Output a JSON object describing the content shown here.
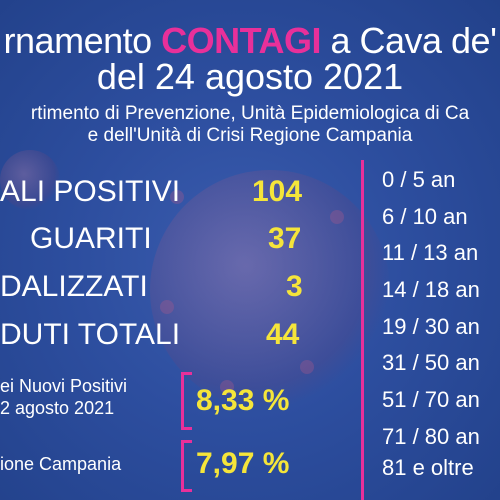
{
  "title": {
    "prefix": "rnamento ",
    "accent": "CONTAGI",
    "suffix": " a Cava de'",
    "date_line": "del 24 agosto 2021"
  },
  "subtitle": {
    "line1": "rtimento di Prevenzione, Unità Epidemiologica di Ca",
    "line2": "e dell'Unità di Crisi Regione Campania"
  },
  "stats": [
    {
      "label": "ALI POSITIVI",
      "value": "104"
    },
    {
      "label": "GUARITI",
      "value": "37"
    },
    {
      "label": "DALIZZATI",
      "value": "3"
    },
    {
      "label": "DUTI TOTALI",
      "value": "44"
    }
  ],
  "percentages": [
    {
      "label_line1": "ei Nuovi Positivi",
      "label_line2": "2 agosto 2021",
      "value": "8,33 %"
    },
    {
      "label_line1": "ione Campania",
      "value": "7,97 %"
    }
  ],
  "age_ranges": [
    "0  /   5  an",
    "6  / 10  an",
    "11  / 13  an",
    "14 / 18  an",
    "19 / 30  an",
    "31 / 50  an",
    "51 / 70  an",
    "71 / 80  an",
    "81 e oltre"
  ],
  "colors": {
    "accent": "#e8309a",
    "value": "#f5e53a",
    "background": "#2d4e9f"
  }
}
